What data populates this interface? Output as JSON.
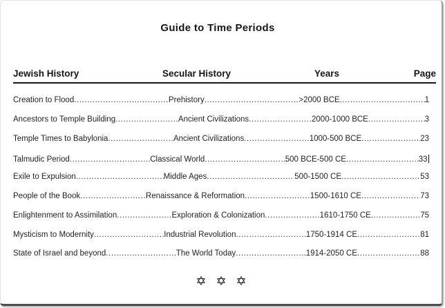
{
  "document": {
    "title": "Guide to Time Periods",
    "columns": {
      "jewish": "Jewish History",
      "secular": "Secular History",
      "years": "Years",
      "page": "Page"
    },
    "rows": [
      {
        "jewish": "Creation to Flood",
        "secular": "Prehistory",
        "years": ">2000 BCE",
        "page": "1"
      },
      {
        "jewish": "Ancestors to Temple Building",
        "secular": "Ancient Civilizations",
        "years": "2000-1000 BCE",
        "page": "3"
      },
      {
        "jewish": "Temple Times to Babylonia",
        "secular": "Ancient Civilizations",
        "years": "1000-500 BCE",
        "page": "23"
      },
      {
        "jewish": "Talmudic Period",
        "secular": "Classical World",
        "years": "500 BCE-500 CE",
        "page": "33"
      },
      {
        "jewish": "Exile to Expulsion",
        "secular": "Middle Ages",
        "years": "500-1500 CE",
        "page": "53"
      },
      {
        "jewish": "People of the Book",
        "secular": "Renaissance & Reformation",
        "years": "1500-1610 CE",
        "page": "73"
      },
      {
        "jewish": "Enlightenment to Assimilation",
        "secular": "Exploration & Colonization",
        "years": "1610-1750 CE",
        "page": "75"
      },
      {
        "jewish": "Mysticism to Modernity",
        "secular": "Industrial Revolution",
        "years": "1750-1914 CE",
        "page": "81"
      },
      {
        "jewish": "State of Israel and beyond",
        "secular": "The World Today",
        "years": "1914-2050 CE",
        "page": "88"
      }
    ],
    "text_cursor": {
      "row_index": 3,
      "position": "after-page-number"
    },
    "footer": {
      "symbols": "✡ ✡ ✡",
      "icon_name": "star-of-david-icon"
    }
  },
  "colors": {
    "text": "#1c1c1c",
    "page_background": "#ffffff",
    "frame_bottom": "#4d4d4d",
    "frame_right": "#9b9b9b",
    "header_underline": "#161616"
  }
}
